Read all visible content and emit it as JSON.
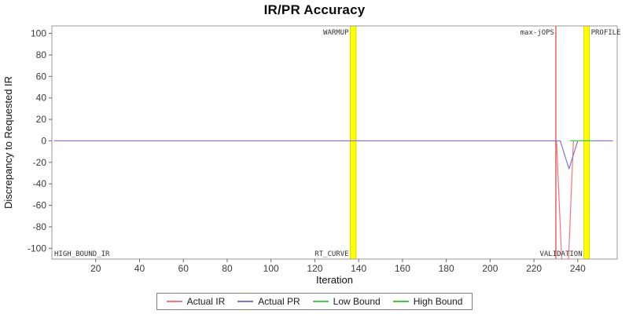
{
  "chart_data": {
    "type": "line",
    "title": "IR/PR Accuracy",
    "xlabel": "Iteration",
    "ylabel": "Discrepancy to Requested IR",
    "xlim": [
      0,
      258
    ],
    "ylim": [
      -110,
      107
    ],
    "x_ticks": [
      20,
      40,
      60,
      80,
      100,
      120,
      140,
      160,
      180,
      200,
      220,
      240
    ],
    "y_ticks": [
      100,
      80,
      60,
      40,
      20,
      0,
      -20,
      -40,
      -60,
      -80,
      -100
    ],
    "grid": false,
    "legend_position": "bottom",
    "series": [
      {
        "name": "Actual IR",
        "color": "#ff7272",
        "points": [
          [
            1,
            0
          ],
          [
            230.3,
            0
          ],
          [
            233.2,
            -135
          ],
          [
            235.3,
            -135
          ],
          [
            238,
            0
          ],
          [
            256,
            0
          ]
        ]
      },
      {
        "name": "Actual PR",
        "color": "#8a6fd8",
        "points": [
          [
            1,
            0
          ],
          [
            232,
            0
          ],
          [
            236,
            -26
          ],
          [
            240,
            0
          ],
          [
            256,
            0
          ]
        ]
      },
      {
        "name": "Low Bound",
        "color": "#4cd04c",
        "points": [
          [
            236.5,
            0
          ],
          [
            247,
            0
          ]
        ]
      },
      {
        "name": "High Bound",
        "color": "#3fcc3f",
        "points": [
          [
            236.5,
            0
          ],
          [
            247,
            0
          ]
        ]
      }
    ],
    "markers": {
      "bands": [
        {
          "name": "warmup-band",
          "x0": 136.2,
          "x1": 138.8,
          "color": "#ffff00",
          "border": "#d8d800",
          "label_top": "WARMUP",
          "label_top_side": "left",
          "label_bottom": "RT_CURVE",
          "label_bottom_side": "left"
        },
        {
          "name": "profile-band",
          "x0": 242.8,
          "x1": 245.3,
          "color": "#ffff00",
          "border": "#d8d800",
          "label_top": "PROFILE",
          "label_top_side": "right",
          "label_bottom": "VALIDATION",
          "label_bottom_side": "left"
        }
      ],
      "vlines": [
        {
          "label": "max-jOPS",
          "x": 230,
          "color": "#e23b3b"
        }
      ],
      "corner_label": "HIGH_BOUND_IR"
    }
  }
}
